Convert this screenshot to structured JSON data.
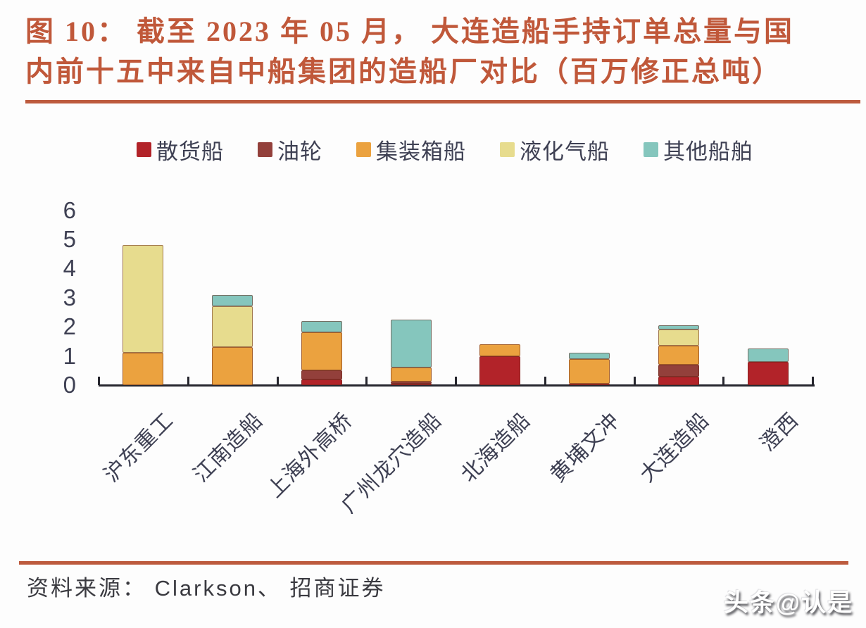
{
  "title": {
    "line1": "图 10： 截至 2023 年 05 月， 大连造船手持订单总量与国",
    "line2": "内前十五中来自中船集团的造船厂对比（百万修正总吨）"
  },
  "accent_color": "#bd5b3e",
  "footer": {
    "text": "资料来源： Clarkson、 招商证券"
  },
  "watermark": {
    "text": "头条@认是"
  },
  "chart_data": {
    "type": "bar",
    "stacked": true,
    "title": "截至 2023 年 05 月，大连造船手持订单总量与国内前十五中来自中船集团的造船厂对比（百万修正总吨）",
    "unit": "百万修正总吨",
    "categories": [
      "沪东重工",
      "江南造船",
      "上海外高桥",
      "广州龙穴造船",
      "北海造船",
      "黄埔文冲",
      "大连造船",
      "澄西"
    ],
    "series": [
      {
        "name": "散货船",
        "color": "#b22329",
        "values": [
          0,
          0,
          0.2,
          0.05,
          1.0,
          0.05,
          0.3,
          0.8
        ]
      },
      {
        "name": "油轮",
        "color": "#93403b",
        "values": [
          0,
          0,
          0.3,
          0.08,
          0,
          0,
          0.4,
          0
        ]
      },
      {
        "name": "集装箱船",
        "color": "#eba23f",
        "values": [
          1.1,
          1.3,
          1.3,
          0.47,
          0.4,
          0.85,
          0.65,
          0
        ]
      },
      {
        "name": "液化气船",
        "color": "#e7dc8e",
        "values": [
          3.7,
          1.4,
          0,
          0,
          0,
          0,
          0.55,
          0
        ]
      },
      {
        "name": "其他船舶",
        "color": "#85c6bd",
        "values": [
          0,
          0.4,
          0.4,
          1.65,
          0,
          0.2,
          0.15,
          0.45
        ]
      }
    ],
    "totals": [
      4.8,
      3.1,
      2.2,
      2.25,
      1.4,
      1.1,
      2.05,
      1.25
    ],
    "ylim": [
      0,
      6
    ],
    "yticks": [
      0,
      1,
      2,
      3,
      4,
      5,
      6
    ],
    "xlabel": "",
    "ylabel": "",
    "grid": false,
    "legend_position": "top",
    "x_tick_label_rotation": 45
  }
}
